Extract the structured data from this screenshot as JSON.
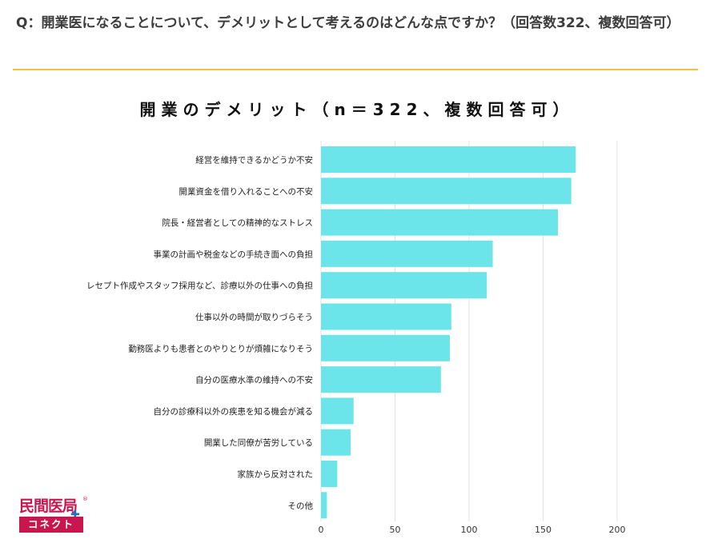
{
  "question": "Q：開業医になることについて、デメリットとして考えるのはどんな点ですか？（回答数322、複数回答可）",
  "logo": {
    "top": "民間医局",
    "bottom": "コネクト",
    "registered": "®",
    "plus": "✚"
  },
  "colors": {
    "bar": "#6ce5ea",
    "rule": "#efc23f",
    "grid": "#e3e3e3",
    "logo": "#c8174f"
  },
  "chart_data": {
    "type": "bar",
    "orientation": "horizontal",
    "title": "開業のデメリット（n＝322、複数回答可）",
    "categories": [
      "経営を維持できるかどうか不安",
      "開業資金を借り入れることへの不安",
      "院長・経営者としての精神的なストレス",
      "事業の計画や税金などの手続き面への負担",
      "レセプト作成やスタッフ採用など、診療以外の仕事への負担",
      "仕事以外の時間が取りづらそう",
      "勤務医よりも患者とのやりとりが煩雑になりそう",
      "自分の医療水準の維持への不安",
      "自分の診療科以外の疾患を知る機会が減る",
      "開業した同僚が苦労している",
      "家族から反対された",
      "その他"
    ],
    "values": [
      172,
      169,
      160,
      116,
      112,
      88,
      87,
      81,
      22,
      20,
      11,
      4
    ],
    "xlim": [
      0,
      200
    ],
    "xticks": [
      0,
      50,
      100,
      150,
      200
    ],
    "xlabel": "",
    "ylabel": "",
    "grid": true
  }
}
